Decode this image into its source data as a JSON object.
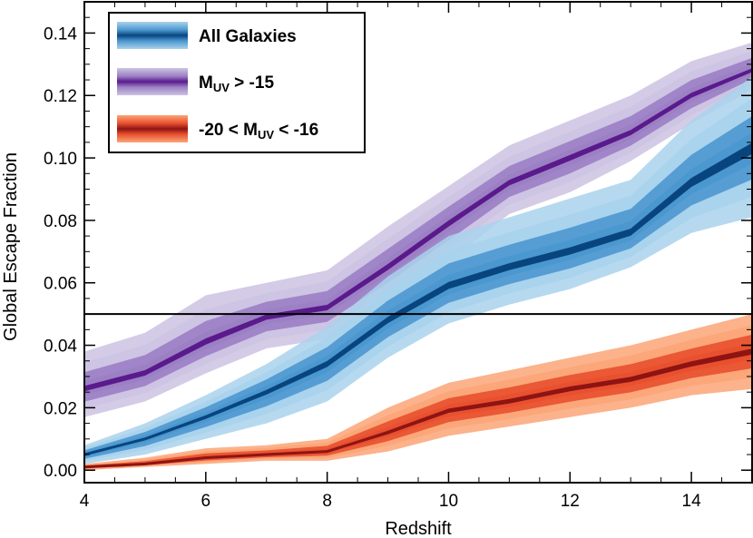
{
  "chart_data": {
    "type": "area",
    "xlabel": "Redshift",
    "ylabel": "Global Escape Fraction",
    "xlim": [
      4,
      15
    ],
    "ylim": [
      -0.004,
      0.15
    ],
    "x_ticks": [
      4,
      6,
      8,
      10,
      12,
      14
    ],
    "x_tick_labels": [
      "4",
      "6",
      "8",
      "10",
      "12",
      "14"
    ],
    "y_ticks": [
      0.0,
      0.02,
      0.04,
      0.06,
      0.08,
      0.1,
      0.12,
      0.14
    ],
    "y_tick_labels": [
      "0.00",
      "0.02",
      "0.04",
      "0.06",
      "0.08",
      "0.10",
      "0.12",
      "0.14"
    ],
    "reference_line": {
      "y": 0.05,
      "color": "#000000"
    },
    "legend_position": "top-left",
    "series": [
      {
        "name": "All Galaxies",
        "label_main": "All Galaxies",
        "label_sub": "",
        "label_tail": "",
        "colors": {
          "outer": "#a9d2ec",
          "mid": "#4b97cf",
          "center": "#08457e"
        },
        "x": [
          4,
          5,
          6,
          7,
          8,
          9,
          10,
          11,
          12,
          13,
          14,
          15
        ],
        "median": [
          0.005,
          0.01,
          0.017,
          0.025,
          0.034,
          0.048,
          0.059,
          0.065,
          0.07,
          0.076,
          0.092,
          0.103
        ],
        "lower": [
          0.002,
          0.005,
          0.01,
          0.015,
          0.022,
          0.036,
          0.047,
          0.053,
          0.058,
          0.065,
          0.076,
          0.081
        ],
        "upper": [
          0.008,
          0.015,
          0.024,
          0.034,
          0.046,
          0.062,
          0.075,
          0.081,
          0.087,
          0.093,
          0.112,
          0.126
        ]
      },
      {
        "name": "MUV > -15",
        "label_main": "M",
        "label_sub": "UV",
        "label_tail": " > -15",
        "colors": {
          "outer": "#cdc3e2",
          "mid": "#9b80c4",
          "center": "#5a1a8c"
        },
        "x": [
          4,
          5,
          6,
          7,
          8,
          9,
          10,
          11,
          12,
          13,
          14,
          15
        ],
        "median": [
          0.026,
          0.031,
          0.041,
          0.049,
          0.052,
          0.065,
          0.079,
          0.092,
          0.1,
          0.108,
          0.12,
          0.128
        ],
        "lower": [
          0.017,
          0.022,
          0.031,
          0.039,
          0.042,
          0.054,
          0.067,
          0.082,
          0.089,
          0.099,
          0.111,
          0.122
        ],
        "upper": [
          0.038,
          0.044,
          0.056,
          0.06,
          0.064,
          0.078,
          0.091,
          0.104,
          0.112,
          0.12,
          0.131,
          0.137
        ]
      },
      {
        "name": "-20 < MUV < -16",
        "label_main": "-20 < M",
        "label_sub": "UV",
        "label_tail": " < -16",
        "colors": {
          "outer": "#fba577",
          "mid": "#e8502e",
          "center": "#8e1414"
        },
        "x": [
          4,
          5,
          6,
          7,
          8,
          9,
          10,
          11,
          12,
          13,
          14,
          15
        ],
        "median": [
          0.001,
          0.002,
          0.004,
          0.005,
          0.006,
          0.012,
          0.019,
          0.022,
          0.026,
          0.029,
          0.034,
          0.038
        ],
        "lower": [
          0.0,
          0.001,
          0.002,
          0.003,
          0.003,
          0.006,
          0.011,
          0.014,
          0.017,
          0.02,
          0.024,
          0.026
        ],
        "upper": [
          0.002,
          0.004,
          0.007,
          0.008,
          0.01,
          0.02,
          0.028,
          0.032,
          0.036,
          0.04,
          0.045,
          0.05
        ]
      }
    ]
  }
}
